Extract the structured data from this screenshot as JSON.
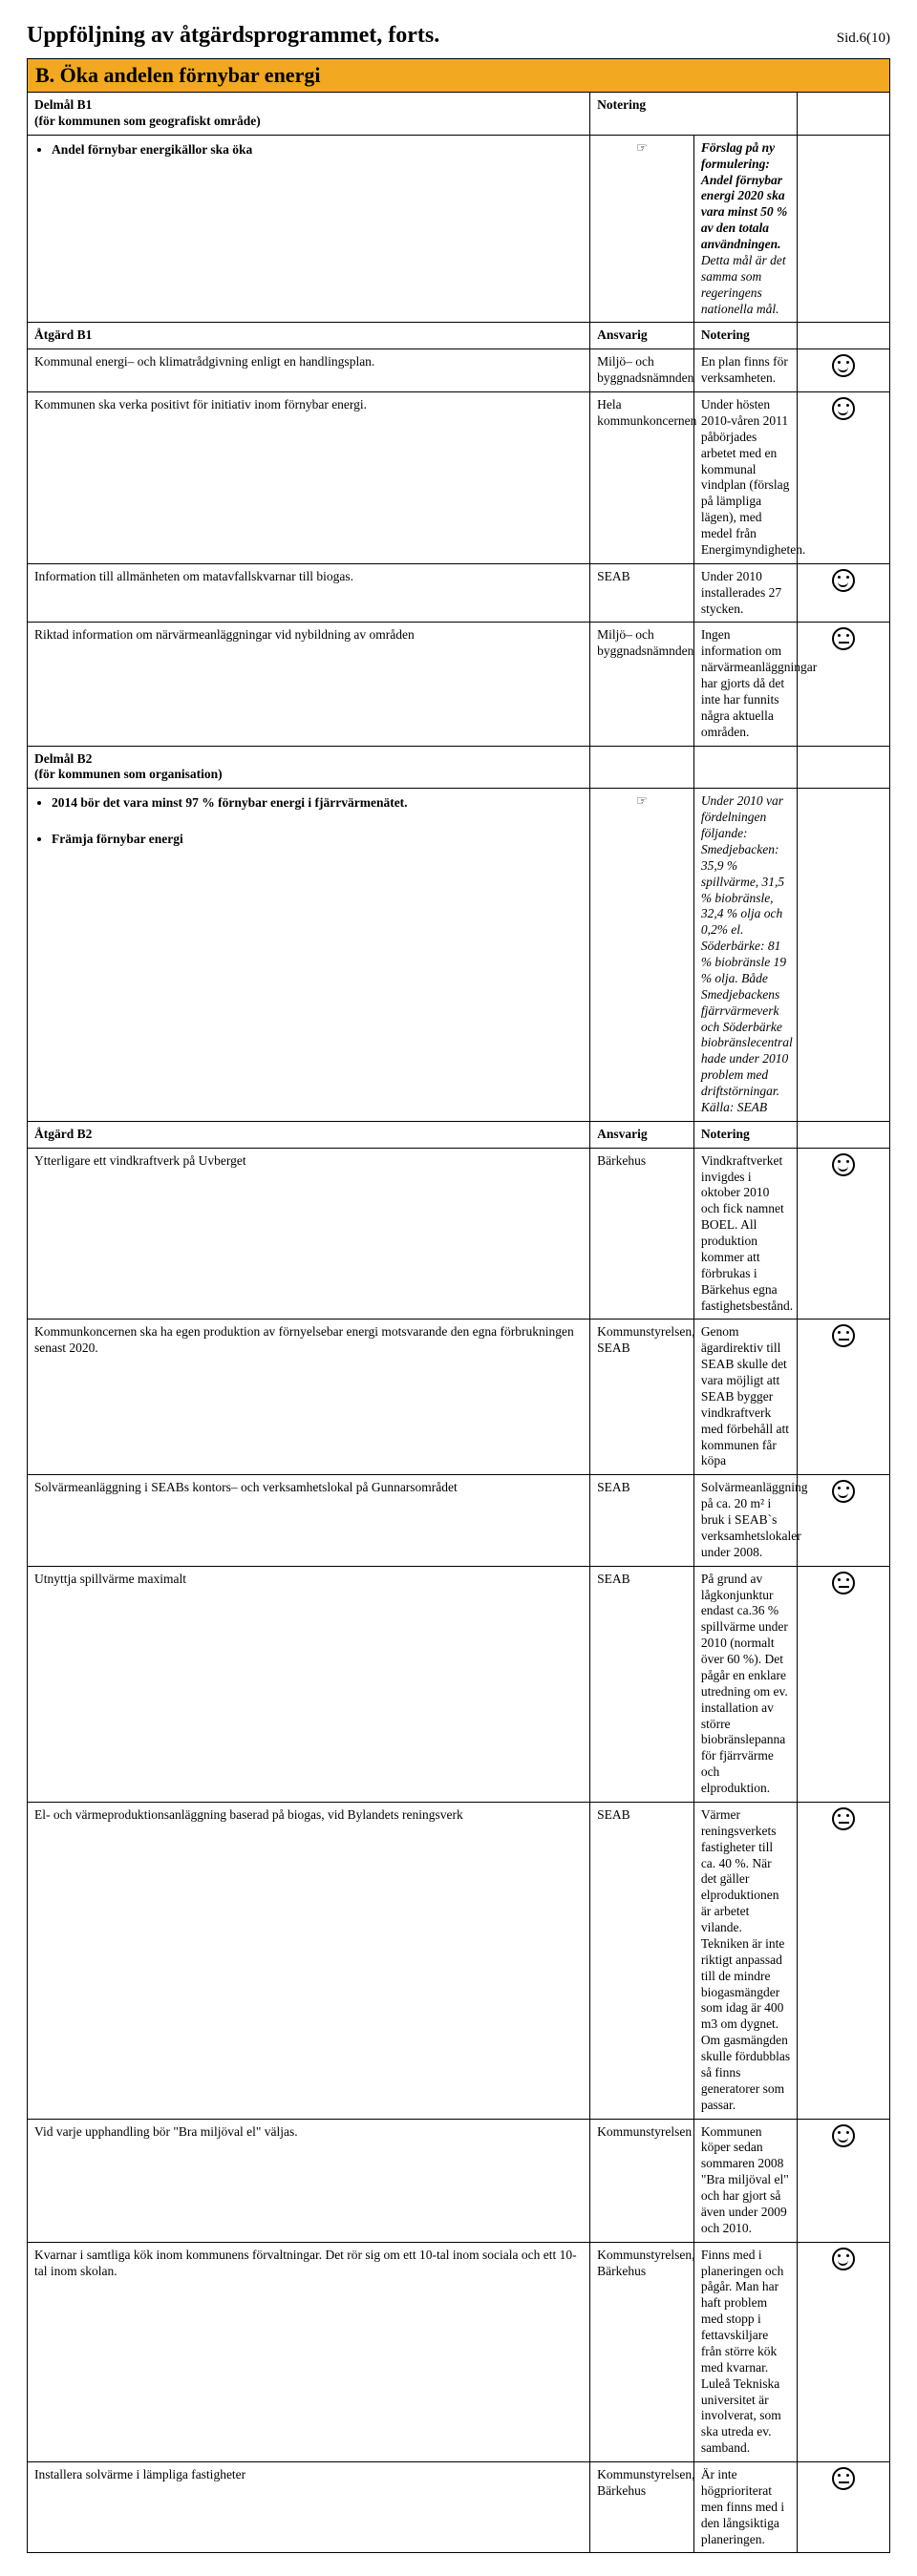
{
  "header": {
    "title": "Uppföljning av åtgärdsprogrammet, forts.",
    "page": "Sid.6(10)",
    "banner": "B. Öka andelen förnybar energi"
  },
  "b1": {
    "delmal_label": "Delmål B1",
    "delmal_sub": "(för kommunen som geografiskt område)",
    "notering_label": "Notering",
    "bullet": "Andel förnybar energikällor ska öka",
    "note_bold": "Förslag på ny formulering: Andel förnybar energi 2020 ska vara minst 50 % av den totala användningen.",
    "note_italic": "Detta mål är det samma som regeringens nationella mål.",
    "atgard_label": "Åtgärd B1",
    "ansvarig_label": "Ansvarig",
    "notering2_label": "Notering",
    "rows": [
      {
        "action": "Kommunal energi– och klimatrådgivning enligt en handlingsplan.",
        "resp": "Miljö– och byggnadsnämnden",
        "note": "En plan finns för verksamheten.",
        "mood": "smile"
      },
      {
        "action": "Kommunen ska verka positivt för initiativ inom förnybar energi.",
        "resp": "Hela kommunkoncernen",
        "note": "Under hösten 2010-våren 2011 påbörjades arbetet med en kommunal vindplan (förslag på lämpliga lägen), med medel från Energimyndigheten.",
        "mood": "smile"
      },
      {
        "action": "Information till allmänheten om matavfallskvarnar till biogas.",
        "resp": "SEAB",
        "note": "Under 2010 installerades 27 stycken.",
        "mood": "smile"
      },
      {
        "action": "Riktad information om närvärmeanläggningar vid nybildning av områden",
        "resp": "Miljö– och byggnadsnämnden",
        "note": "Ingen information om närvärmeanläggningar har gjorts då det inte har funnits några aktuella områden.",
        "mood": "neutral"
      }
    ]
  },
  "b2": {
    "delmal_label": "Delmål B2",
    "delmal_sub": "(för kommunen som organisation)",
    "bullet1": "2014 bör det vara minst 97 % förnybar energi i fjärrvärmenätet.",
    "bullet2": "Främja förnybar energi",
    "note_italic": "Under 2010 var fördelningen följande: Smedjebacken: 35,9 % spillvärme, 31,5 % biobränsle, 32,4 % olja och 0,2% el. Söderbärke: 81 % biobränsle 19 % olja. Både Smedjebackens fjärrvärmeverk och Söderbärke biobränslecentral hade under 2010 problem med driftstörningar.",
    "kalla": "Källa: SEAB",
    "atgard_label": "Åtgärd B2",
    "ansvarig_label": "Ansvarig",
    "notering_label": "Notering",
    "rows": [
      {
        "action": "Ytterligare ett vindkraftverk på Uvberget",
        "resp": "Bärkehus",
        "note": "Vindkraftverket invigdes i oktober 2010 och fick namnet BOEL. All produktion kommer att förbrukas i Bärkehus egna fastighetsbestånd.",
        "mood": "smile"
      },
      {
        "action": "Kommunkoncernen ska ha egen produktion av förnyelsebar energi motsvarande den egna förbrukningen senast 2020.",
        "resp": "Kommunstyrelsen, SEAB",
        "note": "Genom ägardirektiv till SEAB skulle det vara möjligt att SEAB bygger vindkraftverk med förbehåll att kommunen får köpa",
        "mood": "neutral"
      },
      {
        "action": "Solvärmeanläggning i SEABs kontors– och verksamhetslokal på Gunnarsområdet",
        "resp": "SEAB",
        "note": "Solvärmeanläggning på ca. 20 m² i bruk i SEAB`s verksamhetslokaler under 2008.",
        "mood": "smile"
      },
      {
        "action": "Utnyttja spillvärme maximalt",
        "resp": "SEAB",
        "note": "På grund av lågkonjunktur endast ca.36 % spillvärme under 2010 (normalt över 60 %). Det pågår en enklare utredning om ev. installation av större biobränslepanna för fjärrvärme och elproduktion.",
        "mood": "neutral"
      },
      {
        "action": "El- och värmeproduktionsanläggning baserad på biogas, vid Bylandets reningsverk",
        "resp": "SEAB",
        "note": "Värmer reningsverkets fastigheter till ca. 40 %. När det gäller elproduktionen är arbetet vilande. Tekniken är inte riktigt anpassad till de mindre biogasmängder som idag är 400 m3 om dygnet. Om gasmängden skulle fördubblas så finns generatorer som passar.",
        "mood": "neutral"
      },
      {
        "action": "Vid varje upphandling bör \"Bra miljöval el\" väljas.",
        "resp": "Kommunstyrelsen",
        "note": "Kommunen köper sedan sommaren 2008 \"Bra miljöval el\" och har gjort så även under 2009 och 2010.",
        "mood": "smile"
      },
      {
        "action": "Kvarnar i samtliga kök inom kommunens förvaltningar. Det rör sig om ett 10-tal inom sociala och ett 10-tal inom skolan.",
        "resp": "Kommunstyrelsen, Bärkehus",
        "note": "Finns med i planeringen och pågår. Man har haft problem med stopp i fettavskiljare från större kök med kvarnar. Luleå Tekniska universitet är involverat, som ska utreda ev. samband.",
        "mood": "smile"
      },
      {
        "action": "Installera solvärme i lämpliga fastigheter",
        "resp": "Kommunstyrelsen, Bärkehus",
        "note": "Är inte högprioriterat men finns med i den långsiktiga planeringen.",
        "mood": "neutral"
      }
    ]
  }
}
